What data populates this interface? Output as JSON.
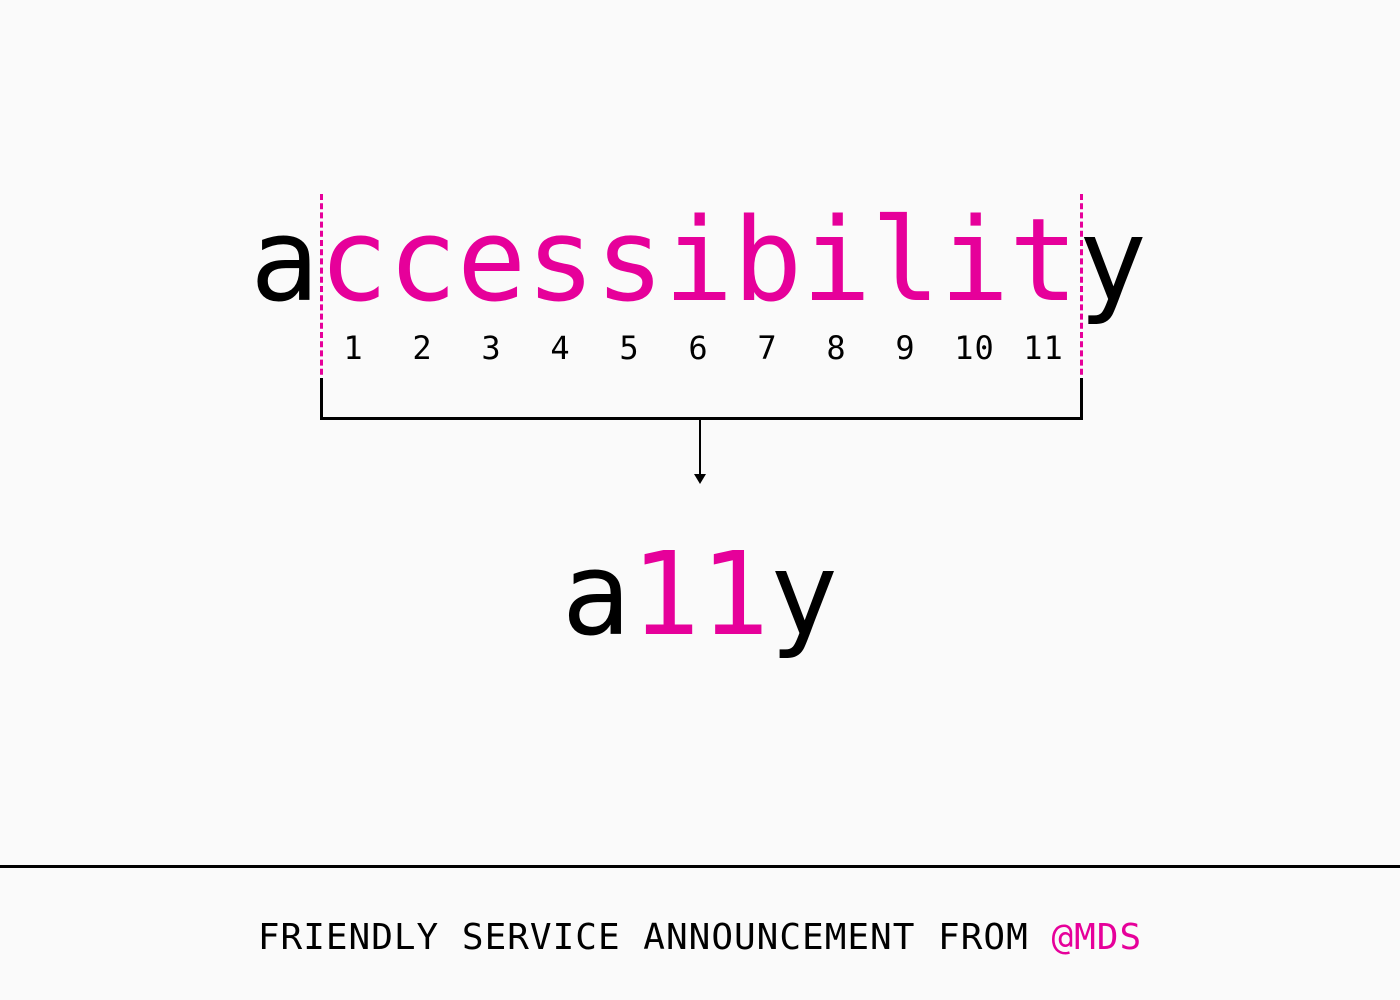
{
  "diagram": {
    "word": {
      "first_letter": "a",
      "middle": "ccessibilit",
      "last_letter": "y"
    },
    "indices": [
      "1",
      "2",
      "3",
      "4",
      "5",
      "6",
      "7",
      "8",
      "9",
      "10",
      "11"
    ],
    "short_form": {
      "first": "a",
      "count": "11",
      "last": "y"
    }
  },
  "footer": {
    "text": "FRIENDLY SERVICE ANNOUNCEMENT FROM",
    "handle": "@MDS"
  },
  "colors": {
    "accent": "#e6009a",
    "text": "#000000",
    "background": "#fafafa"
  }
}
